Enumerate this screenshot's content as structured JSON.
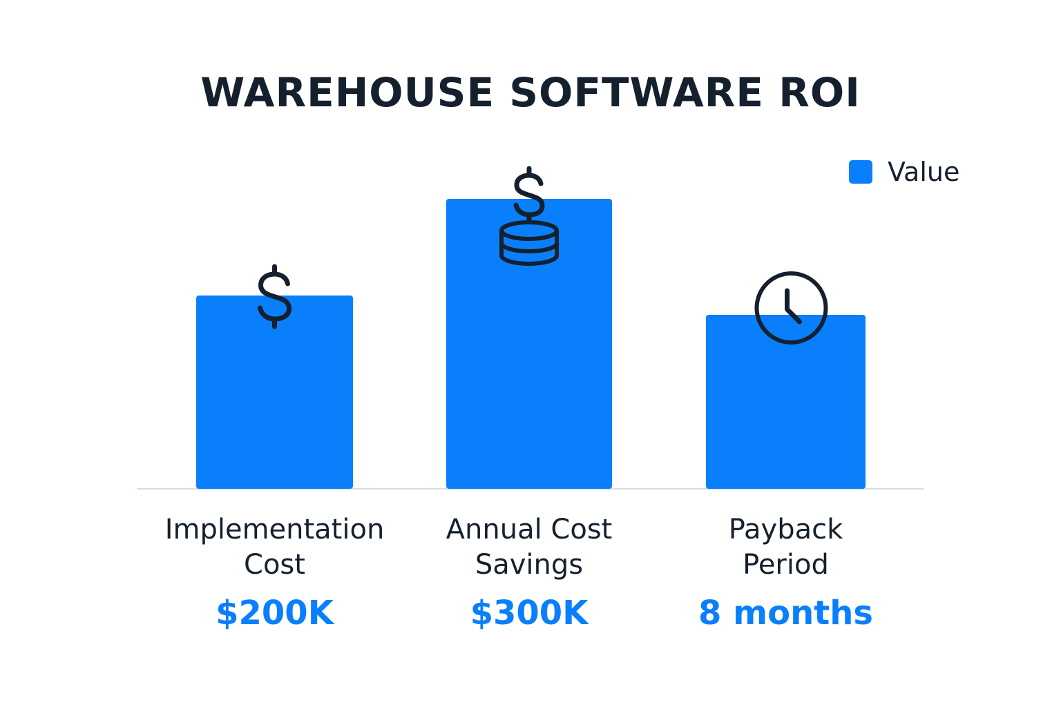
{
  "chart_data": {
    "type": "bar",
    "title": "WAREHOUSE SOFTWARE ROI",
    "categories": [
      [
        "Implementation",
        "Cost"
      ],
      [
        "Annual Cost",
        "Savings"
      ],
      [
        "Payback",
        "Period"
      ]
    ],
    "series": [
      {
        "name": "Value",
        "values": [
          200,
          300,
          180
        ]
      }
    ],
    "value_labels": [
      "$200K",
      "$300K",
      "8 months"
    ],
    "icons": [
      "dollar-sign-icon",
      "coin-stack-icon",
      "clock-icon"
    ],
    "legend_position": "top-right",
    "grid": false,
    "ylim": [
      0,
      340
    ]
  },
  "colors": {
    "bar": "#0a7ffb",
    "value_text": "#0a7ffb",
    "text": "#15202e",
    "baseline": "#d8dde3"
  }
}
